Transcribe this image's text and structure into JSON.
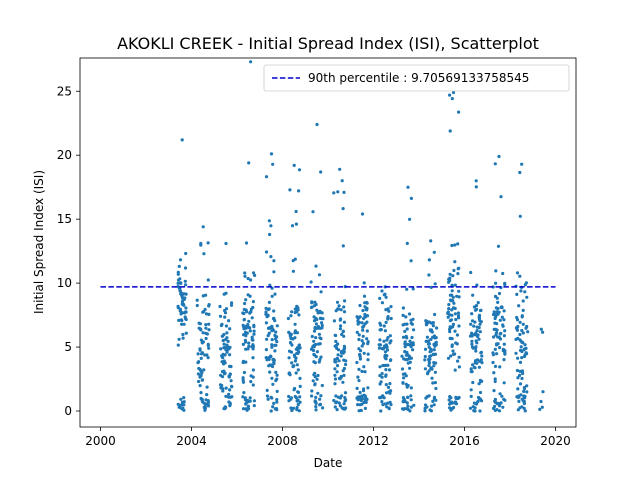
{
  "chart_data": {
    "type": "scatter",
    "title": "AKOKLI CREEK - Initial Spread Index (ISI), Scatterplot",
    "xlabel": "Date",
    "ylabel": "Initial Spread Index (ISI)",
    "xlim": [
      1999.1,
      2020.9
    ],
    "ylim": [
      -1.25,
      27.6
    ],
    "xticks": [
      2000,
      2004,
      2008,
      2012,
      2016,
      2020
    ],
    "xtick_labels": [
      "2000",
      "2004",
      "2008",
      "2012",
      "2016",
      "2020"
    ],
    "yticks": [
      0,
      5,
      10,
      15,
      20,
      25
    ],
    "ytick_labels": [
      "0",
      "5",
      "10",
      "15",
      "20",
      "25"
    ],
    "point_color": "#1f77b4",
    "reference_line": {
      "label": "90th percentile : 9.70569133758545",
      "value": 9.70569133758545,
      "x_range": [
        2000,
        2020
      ],
      "color": "#0000cc",
      "style": "dashed"
    },
    "legend": {
      "location": "top-right"
    },
    "series": [
      {
        "seasons": [
          {
            "year": 2003,
            "start": 2003.4,
            "end": 2003.78,
            "count": 70,
            "max": 21.2,
            "mid": 8.5,
            "spread": 2.0
          },
          {
            "year": 2004,
            "start": 2004.25,
            "end": 2004.78,
            "count": 80,
            "max": 14.4,
            "mid": 5.0,
            "spread": 3.0
          },
          {
            "year": 2005,
            "start": 2005.25,
            "end": 2005.78,
            "count": 80,
            "max": 13.1,
            "mid": 4.5,
            "spread": 3.0
          },
          {
            "year": 2006,
            "start": 2006.25,
            "end": 2006.78,
            "count": 90,
            "max": 19.4,
            "mid": 5.5,
            "spread": 3.0
          },
          {
            "year": 2007,
            "start": 2007.25,
            "end": 2007.78,
            "count": 90,
            "max": 20.1,
            "mid": 5.5,
            "spread": 3.0
          },
          {
            "year": 2008,
            "start": 2008.25,
            "end": 2008.78,
            "count": 85,
            "max": 19.2,
            "mid": 5.0,
            "spread": 3.0
          },
          {
            "year": 2009,
            "start": 2009.25,
            "end": 2009.78,
            "count": 85,
            "max": 22.4,
            "mid": 5.5,
            "spread": 3.0
          },
          {
            "year": 2010,
            "start": 2010.25,
            "end": 2010.78,
            "count": 90,
            "max": 18.9,
            "mid": 5.0,
            "spread": 3.0
          },
          {
            "year": 2011,
            "start": 2011.25,
            "end": 2011.78,
            "count": 85,
            "max": 15.4,
            "mid": 5.0,
            "spread": 3.0
          },
          {
            "year": 2012,
            "start": 2012.25,
            "end": 2012.78,
            "count": 85,
            "max": 9.7,
            "mid": 4.0,
            "spread": 3.0
          },
          {
            "year": 2013,
            "start": 2013.25,
            "end": 2013.78,
            "count": 85,
            "max": 17.5,
            "mid": 5.0,
            "spread": 3.0
          },
          {
            "year": 2014,
            "start": 2014.25,
            "end": 2014.78,
            "count": 85,
            "max": 13.3,
            "mid": 5.0,
            "spread": 3.0
          },
          {
            "year": 2015,
            "start": 2015.25,
            "end": 2015.78,
            "count": 95,
            "max": 24.9,
            "mid": 7.5,
            "spread": 3.0
          },
          {
            "year": 2016,
            "start": 2016.25,
            "end": 2016.78,
            "count": 85,
            "max": 18.0,
            "mid": 5.0,
            "spread": 3.0
          },
          {
            "year": 2017,
            "start": 2017.25,
            "end": 2017.78,
            "count": 90,
            "max": 19.9,
            "mid": 6.0,
            "spread": 3.0
          },
          {
            "year": 2018,
            "start": 2018.25,
            "end": 2018.78,
            "count": 85,
            "max": 19.3,
            "mid": 5.5,
            "spread": 3.0
          },
          {
            "year": 2019,
            "start": 2019.3,
            "end": 2019.45,
            "count": 5,
            "max": 6.4,
            "mid": 3.0,
            "spread": 2.0
          }
        ]
      }
    ]
  }
}
